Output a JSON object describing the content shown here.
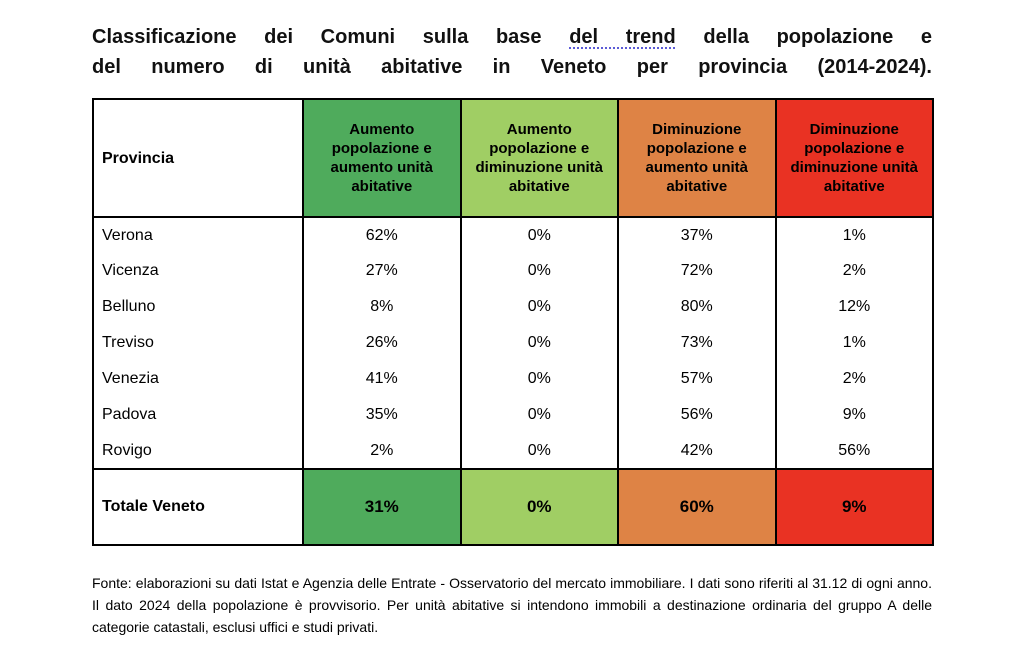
{
  "title": {
    "line1": {
      "pre": "Classificazione dei Comuni sulla base ",
      "underlined": "del trend",
      "post": " della popolazione e"
    },
    "line2": "del numero di unità abitative in Veneto per provincia (2014-2024)."
  },
  "colors": {
    "green_dark": "#4FAB5C",
    "green_light": "#A0CE64",
    "orange": "#DE8345",
    "red": "#E93223",
    "border": "#000000",
    "underline_blue": "#5B5BD6"
  },
  "table": {
    "header": {
      "province_label": "Provincia",
      "columns": [
        {
          "label": "Aumento popolazione e aumento unità abitative",
          "color": "#4FAB5C"
        },
        {
          "label": "Aumento popolazione e diminuzione unità abitative",
          "color": "#A0CE64"
        },
        {
          "label": "Diminuzione popolazione e aumento unità abitative",
          "color": "#DE8345"
        },
        {
          "label": "Diminuzione popolazione e diminuzione unità abitative",
          "color": "#E93223"
        }
      ]
    },
    "rows": [
      {
        "province": "Verona",
        "values": [
          "62%",
          "0%",
          "37%",
          "1%"
        ]
      },
      {
        "province": "Vicenza",
        "values": [
          "27%",
          "0%",
          "72%",
          "2%"
        ]
      },
      {
        "province": "Belluno",
        "values": [
          "8%",
          "0%",
          "80%",
          "12%"
        ]
      },
      {
        "province": "Treviso",
        "values": [
          "26%",
          "0%",
          "73%",
          "1%"
        ]
      },
      {
        "province": "Venezia",
        "values": [
          "41%",
          "0%",
          "57%",
          "2%"
        ]
      },
      {
        "province": "Padova",
        "values": [
          "35%",
          "0%",
          "56%",
          "9%"
        ]
      },
      {
        "province": "Rovigo",
        "values": [
          "2%",
          "0%",
          "42%",
          "56%"
        ]
      }
    ],
    "total": {
      "label": "Totale Veneto",
      "values": [
        "31%",
        "0%",
        "60%",
        "9%"
      ]
    }
  },
  "footer": {
    "text": "Fonte: elaborazioni su dati Istat e Agenzia delle Entrate - Osservatorio del mercato immobiliare. I dati sono riferiti al 31.12 di ogni anno. Il dato 2024 della popolazione è provvisorio. Per unità abitative si intendono immobili a destinazione ordinaria del gruppo A delle categorie catastali, esclusi uffici e studi privati."
  },
  "chart_data": {
    "type": "table",
    "title": "Classificazione dei Comuni sulla base del trend della popolazione e del numero di unità abitative in Veneto per provincia (2014-2024).",
    "unit": "%",
    "columns": [
      "Provincia",
      "Aumento popolazione e aumento unità abitative",
      "Aumento popolazione e diminuzione unità abitative",
      "Diminuzione popolazione e aumento unità abitative",
      "Diminuzione popolazione e diminuzione unità abitative"
    ],
    "rows": [
      [
        "Verona",
        62,
        0,
        37,
        1
      ],
      [
        "Vicenza",
        27,
        0,
        72,
        2
      ],
      [
        "Belluno",
        8,
        0,
        80,
        12
      ],
      [
        "Treviso",
        26,
        0,
        73,
        1
      ],
      [
        "Venezia",
        41,
        0,
        57,
        2
      ],
      [
        "Padova",
        35,
        0,
        56,
        9
      ],
      [
        "Rovigo",
        2,
        0,
        42,
        56
      ],
      [
        "Totale Veneto",
        31,
        0,
        60,
        9
      ]
    ]
  }
}
